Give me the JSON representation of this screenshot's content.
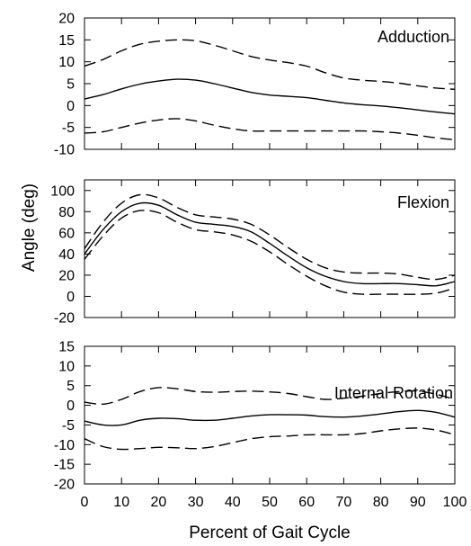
{
  "figure": {
    "ylabel": "Angle (deg)",
    "xlabel": "Percent of Gait Cycle",
    "x_ticks": [
      0,
      10,
      20,
      30,
      40,
      50,
      60,
      70,
      80,
      90,
      100
    ]
  },
  "chart_data": [
    {
      "type": "line",
      "title": "Adduction",
      "xlim": [
        0,
        100
      ],
      "ylim": [
        -10,
        20
      ],
      "y_ticks": [
        20,
        15,
        10,
        5,
        0,
        -5,
        -10
      ],
      "x": [
        0,
        5,
        10,
        15,
        20,
        25,
        30,
        35,
        40,
        45,
        50,
        55,
        60,
        65,
        70,
        75,
        80,
        85,
        90,
        95,
        100
      ],
      "series": [
        {
          "style": "dashed",
          "values": [
            9.0,
            10.5,
            12.5,
            14.0,
            14.7,
            15.0,
            14.8,
            13.8,
            12.5,
            11.2,
            10.4,
            9.8,
            9.0,
            7.5,
            6.3,
            5.8,
            5.5,
            5.1,
            4.5,
            4.0,
            3.7
          ]
        },
        {
          "style": "solid",
          "values": [
            1.5,
            2.5,
            3.8,
            4.9,
            5.6,
            6.0,
            5.8,
            5.0,
            4.0,
            3.0,
            2.4,
            2.1,
            1.8,
            1.2,
            0.6,
            0.2,
            -0.1,
            -0.5,
            -1.0,
            -1.5,
            -1.9
          ]
        },
        {
          "style": "dashed",
          "values": [
            -6.3,
            -6.0,
            -5.0,
            -4.0,
            -3.3,
            -3.0,
            -3.5,
            -4.5,
            -5.3,
            -5.8,
            -5.8,
            -5.8,
            -5.8,
            -5.8,
            -5.8,
            -5.8,
            -6.0,
            -6.3,
            -6.8,
            -7.4,
            -7.8
          ]
        }
      ]
    },
    {
      "type": "line",
      "title": "Flexion",
      "xlim": [
        0,
        100
      ],
      "ylim": [
        -20,
        110
      ],
      "y_ticks": [
        100,
        80,
        60,
        40,
        20,
        0,
        -20
      ],
      "x": [
        0,
        5,
        10,
        15,
        20,
        25,
        30,
        35,
        40,
        45,
        50,
        55,
        60,
        65,
        70,
        75,
        80,
        85,
        90,
        95,
        100
      ],
      "series": [
        {
          "style": "dashed",
          "values": [
            45,
            70,
            88,
            96,
            93,
            84,
            77,
            75,
            73,
            68,
            58,
            46,
            35,
            27,
            23,
            22,
            22,
            21,
            18,
            16,
            20
          ]
        },
        {
          "style": "solid",
          "values": [
            40,
            63,
            80,
            88,
            86,
            77,
            70,
            68,
            66,
            61,
            50,
            38,
            27,
            19,
            14,
            12,
            12,
            12,
            11,
            10,
            14
          ]
        },
        {
          "style": "dashed",
          "values": [
            35,
            57,
            74,
            81,
            79,
            70,
            63,
            61,
            58,
            52,
            42,
            30,
            19,
            10,
            4,
            2,
            2,
            2,
            2,
            3,
            8
          ]
        }
      ]
    },
    {
      "type": "line",
      "title": "Internal Rotation",
      "xlim": [
        0,
        100
      ],
      "ylim": [
        -20,
        15
      ],
      "y_ticks": [
        15,
        10,
        5,
        0,
        -5,
        -10,
        -15,
        -20
      ],
      "x": [
        0,
        5,
        10,
        15,
        20,
        25,
        30,
        35,
        40,
        45,
        50,
        55,
        60,
        65,
        70,
        75,
        80,
        85,
        90,
        95,
        100
      ],
      "series": [
        {
          "style": "dashed",
          "values": [
            0.8,
            0.3,
            1.5,
            3.5,
            4.5,
            4.2,
            3.5,
            3.3,
            3.5,
            3.6,
            3.4,
            3.0,
            2.2,
            1.5,
            1.8,
            2.3,
            3.0,
            3.5,
            3.6,
            2.8,
            1.5
          ]
        },
        {
          "style": "solid",
          "values": [
            -4.0,
            -5.0,
            -5.0,
            -3.8,
            -3.3,
            -3.4,
            -3.8,
            -3.8,
            -3.3,
            -2.7,
            -2.4,
            -2.4,
            -2.5,
            -2.9,
            -3.0,
            -2.7,
            -2.2,
            -1.6,
            -1.3,
            -1.8,
            -3.0
          ]
        },
        {
          "style": "dashed",
          "values": [
            -8.5,
            -10.5,
            -11.2,
            -11.0,
            -10.7,
            -10.8,
            -11.0,
            -10.5,
            -9.5,
            -8.5,
            -8.0,
            -7.8,
            -7.5,
            -7.5,
            -7.5,
            -7.2,
            -6.5,
            -6.0,
            -5.8,
            -6.3,
            -7.5
          ]
        }
      ]
    }
  ]
}
